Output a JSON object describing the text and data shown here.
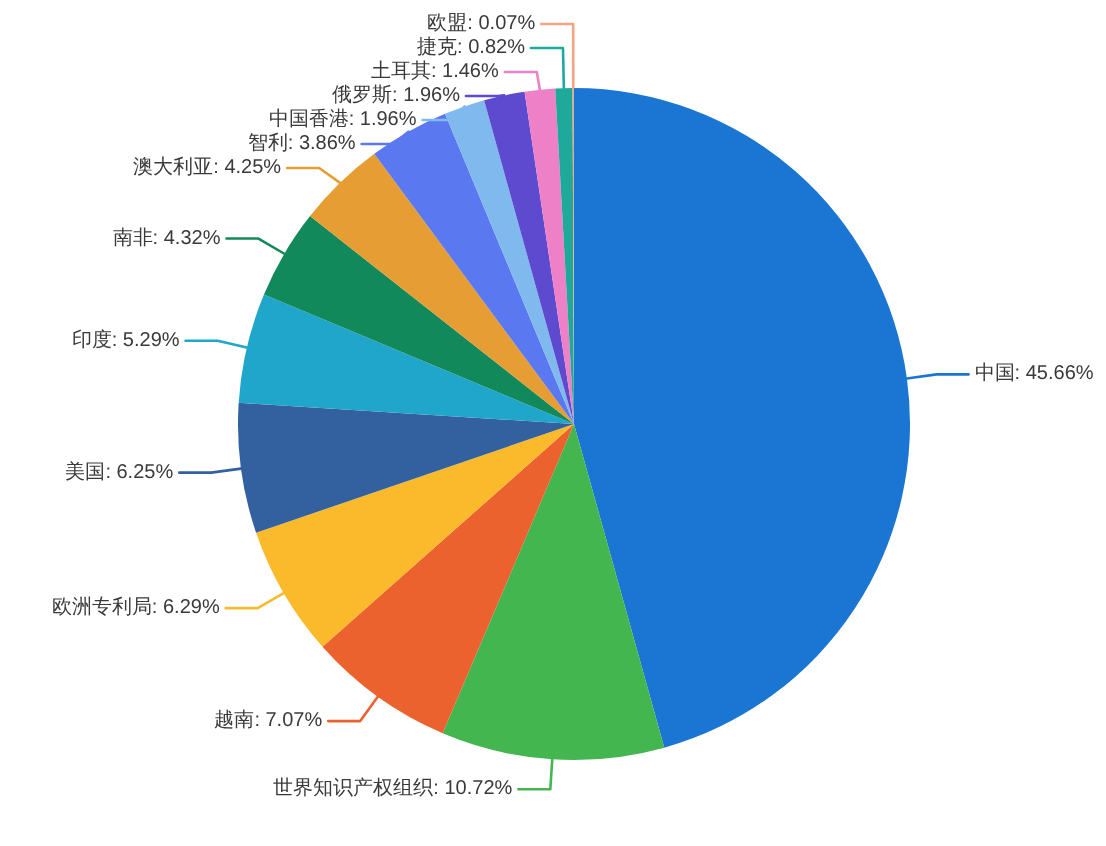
{
  "chart_data": {
    "type": "pie",
    "categories": [
      "中国",
      "世界知识产权组织",
      "越南",
      "欧洲专利局",
      "美国",
      "印度",
      "南非",
      "澳大利亚",
      "智利",
      "中国香港",
      "俄罗斯",
      "土耳其",
      "捷克",
      "欧盟"
    ],
    "values": [
      45.66,
      10.72,
      7.07,
      6.29,
      6.25,
      5.29,
      4.32,
      4.25,
      3.86,
      1.96,
      1.96,
      1.46,
      0.82,
      0.07
    ],
    "value_labels": [
      "45.66%",
      "10.72%",
      "7.07%",
      "6.29%",
      "6.25%",
      "5.29%",
      "4.32%",
      "4.25%",
      "3.86%",
      "1.96%",
      "1.96%",
      "1.46%",
      "0.82%",
      "0.07%"
    ],
    "colors": [
      "#1b76d3",
      "#44b64f",
      "#eb622e",
      "#fbba2b",
      "#33609e",
      "#20a6ca",
      "#12895a",
      "#e69d33",
      "#5a78f0",
      "#80b9ee",
      "#5e4acf",
      "#ee80c8",
      "#1fa99a",
      "#f4a582"
    ]
  }
}
